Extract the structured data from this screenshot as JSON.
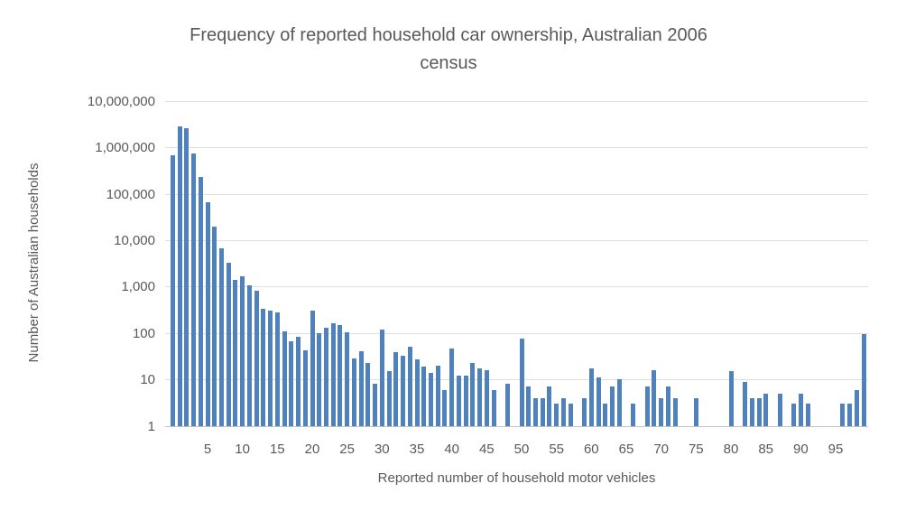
{
  "title": {
    "line1": "Frequency of reported household car ownership, Australian 2006",
    "line2": "census"
  },
  "colors": {
    "bar": "#4f81bd",
    "text": "#595959",
    "gridline": "#dedede",
    "axis_line": "#c3c3c3",
    "background": "#ffffff"
  },
  "chart_data": {
    "type": "bar",
    "title": "Frequency of reported household car ownership, Australian 2006 census",
    "xlabel": "Reported number of household motor vehicles",
    "ylabel": "Number of Australian households",
    "y_scale": "log10",
    "ylim": [
      1,
      10000000
    ],
    "grid": true,
    "legend": "none",
    "y_tick_labels": [
      "1",
      "10",
      "100",
      "1,000",
      "10,000",
      "100,000",
      "1,000,000",
      "10,000,000"
    ],
    "x_tick_values": [
      5,
      10,
      15,
      20,
      25,
      30,
      35,
      40,
      45,
      50,
      55,
      60,
      65,
      70,
      75,
      80,
      85,
      90,
      95
    ],
    "x_start": 0,
    "x_end": 99,
    "values": [
      680000,
      2800000,
      2600000,
      750000,
      230000,
      65000,
      20000,
      6800,
      3200,
      1400,
      1700,
      1050,
      820,
      340,
      310,
      280,
      107,
      67,
      85,
      42,
      300,
      100,
      130,
      165,
      147,
      105,
      29,
      40,
      23,
      8,
      120,
      15,
      39,
      32,
      50,
      27,
      19,
      14,
      20,
      6,
      46,
      12,
      12,
      23,
      17,
      16,
      6,
      0,
      8,
      0,
      75,
      7,
      4,
      4,
      7,
      3,
      4,
      3,
      0,
      4,
      17,
      11,
      3,
      7,
      10,
      0,
      3,
      0,
      7,
      16,
      4,
      7,
      4,
      0,
      0,
      4,
      0,
      0,
      0,
      0,
      15,
      0,
      9,
      4,
      4,
      5,
      0,
      5,
      0,
      3,
      5,
      3,
      0,
      0,
      0,
      0,
      3,
      3,
      6,
      95
    ]
  }
}
